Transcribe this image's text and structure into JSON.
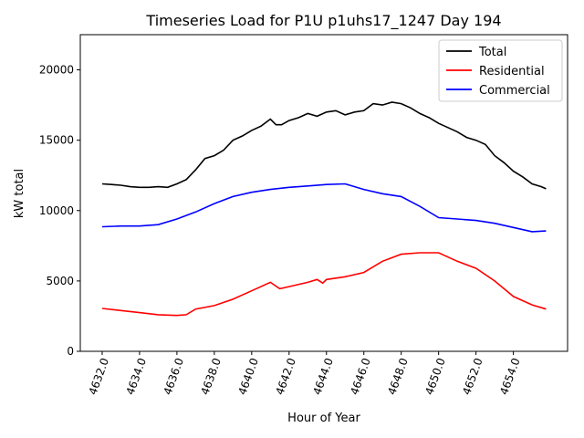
{
  "chart_data": {
    "type": "line",
    "title": "Timeseries Load for P1U p1uhs17_1247  Day 194",
    "xlabel": "Hour of Year",
    "ylabel": "kW total",
    "xlim": [
      4630.83,
      4656.9
    ],
    "ylim": [
      0,
      22500
    ],
    "xticks": [
      4632,
      4634,
      4636,
      4638,
      4640,
      4642,
      4644,
      4646,
      4648,
      4650,
      4652,
      4654
    ],
    "xtick_labels": [
      "4632.0",
      "4634.0",
      "4636.0",
      "4638.0",
      "4640.0",
      "4642.0",
      "4644.0",
      "4646.0",
      "4648.0",
      "4650.0",
      "4652.0",
      "4654.0"
    ],
    "yticks": [
      0,
      5000,
      10000,
      15000,
      20000
    ],
    "ytick_labels": [
      "0",
      "5000",
      "10000",
      "15000",
      "20000"
    ],
    "grid": false,
    "legend_position": "top-right",
    "series": [
      {
        "name": "Total",
        "color": "#000000",
        "x": [
          4632,
          4632.5,
          4633,
          4633.5,
          4634,
          4634.5,
          4635,
          4635.5,
          4636,
          4636.5,
          4637,
          4637.5,
          4638,
          4638.5,
          4639,
          4639.5,
          4640,
          4640.5,
          4641,
          4641.3,
          4641.6,
          4642,
          4642.5,
          4643,
          4643.5,
          4644,
          4644.5,
          4645,
          4645.5,
          4646,
          4646.5,
          4647,
          4647.5,
          4648,
          4648.5,
          4649,
          4649.5,
          4650,
          4650.5,
          4651,
          4651.5,
          4652,
          4652.5,
          4653,
          4653.5,
          4654,
          4654.5,
          4655,
          4655.5,
          4655.75
        ],
        "y": [
          11900,
          11850,
          11800,
          11700,
          11650,
          11650,
          11700,
          11650,
          11900,
          12200,
          12900,
          13700,
          13900,
          14300,
          15000,
          15300,
          15700,
          16000,
          16500,
          16100,
          16100,
          16400,
          16600,
          16900,
          16700,
          17000,
          17100,
          16800,
          17000,
          17100,
          17600,
          17500,
          17700,
          17600,
          17300,
          16900,
          16600,
          16200,
          15900,
          15600,
          15200,
          15000,
          14700,
          13900,
          13400,
          12800,
          12400,
          11900,
          11700,
          11550
        ]
      },
      {
        "name": "Residential",
        "color": "#ff0000",
        "x": [
          4632,
          4633,
          4634,
          4635,
          4636,
          4636.5,
          4637,
          4638,
          4639,
          4640,
          4641,
          4641.5,
          4642,
          4643,
          4643.5,
          4643.8,
          4644,
          4645,
          4646,
          4647,
          4648,
          4649,
          4650,
          4651,
          4652,
          4653,
          4654,
          4655,
          4655.75
        ],
        "y": [
          3050,
          2900,
          2750,
          2600,
          2550,
          2600,
          3000,
          3250,
          3700,
          4300,
          4900,
          4450,
          4600,
          4900,
          5100,
          4850,
          5100,
          5300,
          5600,
          6400,
          6900,
          7000,
          7000,
          6400,
          5900,
          5000,
          3900,
          3300,
          3000
        ]
      },
      {
        "name": "Commercial",
        "color": "#0000ff",
        "x": [
          4632,
          4633,
          4634,
          4635,
          4636,
          4637,
          4638,
          4639,
          4640,
          4641,
          4642,
          4643,
          4644,
          4645,
          4646,
          4647,
          4648,
          4649,
          4650,
          4651,
          4652,
          4653,
          4654,
          4655,
          4655.75
        ],
        "y": [
          8850,
          8900,
          8900,
          9000,
          9400,
          9900,
          10500,
          11000,
          11300,
          11500,
          11650,
          11750,
          11850,
          11900,
          11500,
          11200,
          11000,
          10300,
          9500,
          9400,
          9300,
          9100,
          8800,
          8500,
          8550
        ]
      }
    ]
  }
}
